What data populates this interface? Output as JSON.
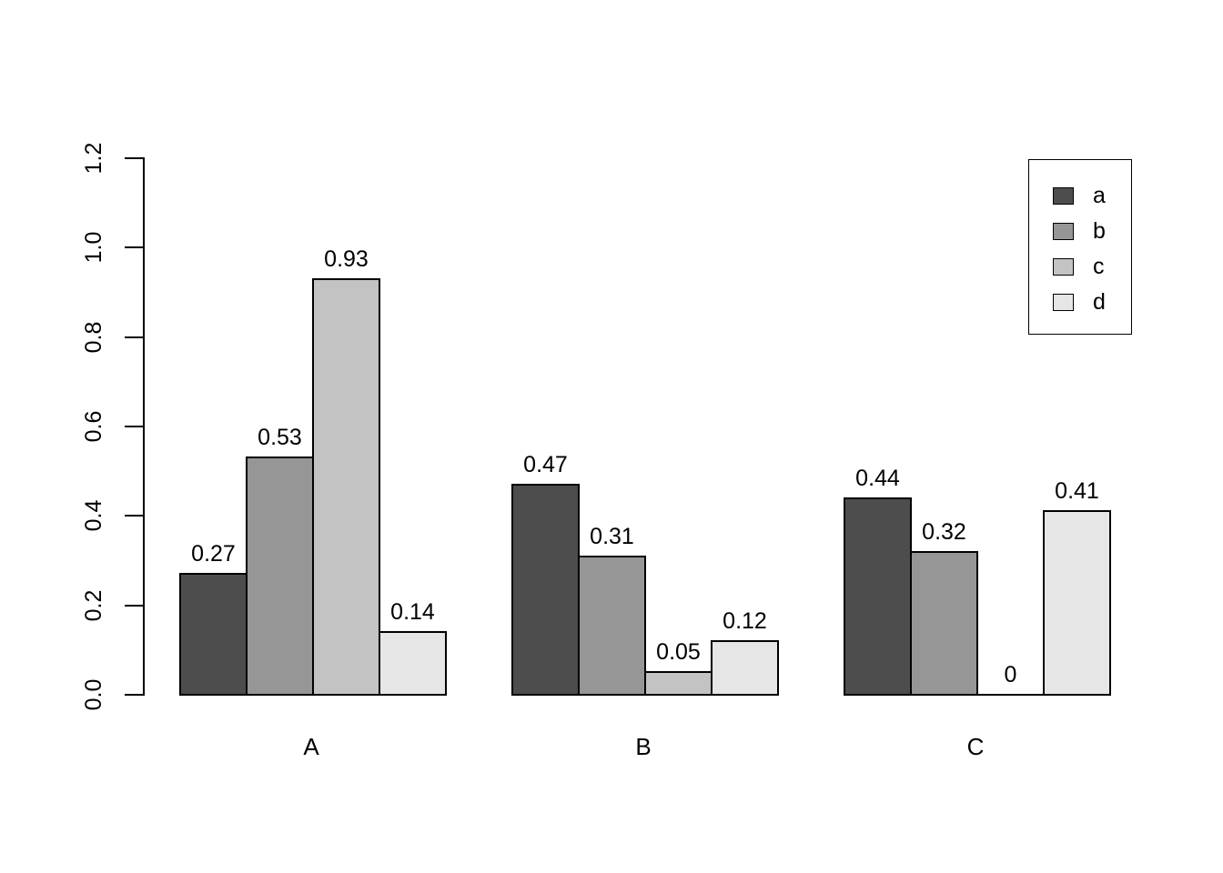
{
  "figure": {
    "background_color": "#ffffff",
    "text_color": "#000000",
    "axis_color": "#000000"
  },
  "chart_data": {
    "type": "bar",
    "orientation": "vertical",
    "grouped": true,
    "title": "",
    "xlabel": "",
    "ylabel": "",
    "categories": [
      "A",
      "B",
      "C"
    ],
    "series": [
      {
        "name": "a",
        "color": "#4D4D4D",
        "values": [
          0.27,
          0.47,
          0.44
        ]
      },
      {
        "name": "b",
        "color": "#969696",
        "values": [
          0.53,
          0.31,
          0.32
        ]
      },
      {
        "name": "c",
        "color": "#C3C3C3",
        "values": [
          0.93,
          0.05,
          0
        ]
      },
      {
        "name": "d",
        "color": "#E6E6E6",
        "values": [
          0.14,
          0.12,
          0.41
        ]
      }
    ],
    "bar_value_labels": [
      [
        "0.27",
        "0.53",
        "0.93",
        "0.14"
      ],
      [
        "0.47",
        "0.31",
        "0.05",
        "0.12"
      ],
      [
        "0.44",
        "0.32",
        "0",
        "0.41"
      ]
    ],
    "y_ticks": [
      "0.0",
      "0.2",
      "0.4",
      "0.6",
      "0.8",
      "1.0",
      "1.2"
    ],
    "ylim": [
      0,
      1.2
    ],
    "grid": false,
    "bar_border_color": "#000000",
    "legend": {
      "position": "top-right",
      "entries": [
        "a",
        "b",
        "c",
        "d"
      ]
    }
  }
}
